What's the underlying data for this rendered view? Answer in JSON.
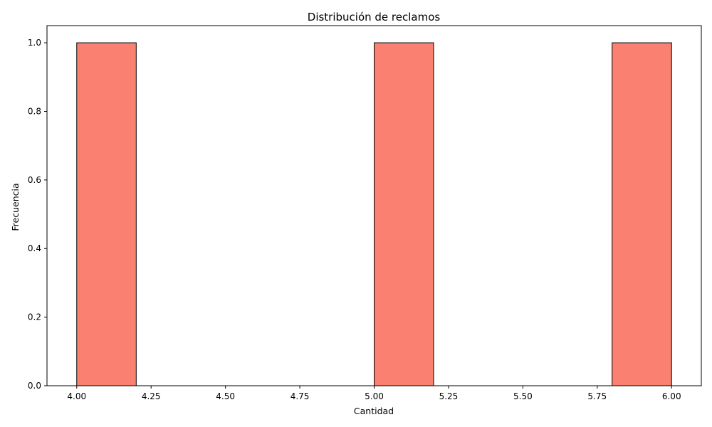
{
  "chart_data": {
    "type": "bar",
    "title": "Distribución de reclamos",
    "xlabel": "Cantidad",
    "ylabel": "Frecuencia",
    "xlim": [
      3.9,
      6.1
    ],
    "ylim": [
      0,
      1.05
    ],
    "x_ticks": [
      "4.00",
      "4.25",
      "4.50",
      "4.75",
      "5.00",
      "5.25",
      "5.50",
      "5.75",
      "6.00"
    ],
    "x_tick_values": [
      4.0,
      4.25,
      4.5,
      4.75,
      5.0,
      5.25,
      5.5,
      5.75,
      6.0
    ],
    "y_ticks": [
      "0.0",
      "0.2",
      "0.4",
      "0.6",
      "0.8",
      "1.0"
    ],
    "y_tick_values": [
      0.0,
      0.2,
      0.4,
      0.6,
      0.8,
      1.0
    ],
    "bins": [
      {
        "x_start": 4.0,
        "x_end": 4.2,
        "count": 1
      },
      {
        "x_start": 4.2,
        "x_end": 4.4,
        "count": 0
      },
      {
        "x_start": 4.4,
        "x_end": 4.6,
        "count": 0
      },
      {
        "x_start": 4.6,
        "x_end": 4.8,
        "count": 0
      },
      {
        "x_start": 4.8,
        "x_end": 5.0,
        "count": 0
      },
      {
        "x_start": 5.0,
        "x_end": 5.2,
        "count": 1
      },
      {
        "x_start": 5.2,
        "x_end": 5.4,
        "count": 0
      },
      {
        "x_start": 5.4,
        "x_end": 5.6,
        "count": 0
      },
      {
        "x_start": 5.6,
        "x_end": 5.8,
        "count": 0
      },
      {
        "x_start": 5.8,
        "x_end": 6.0,
        "count": 1
      }
    ],
    "bar_color": "#fa8072",
    "edge_color": "#000000",
    "grid": false,
    "legend": "none"
  }
}
